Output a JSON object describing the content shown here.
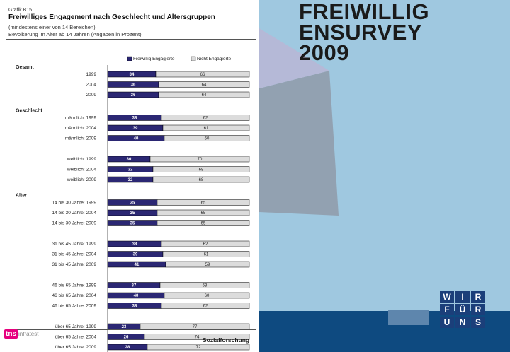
{
  "slide": {
    "title_lines": [
      "FREIWILLIG",
      "ENSURVEY",
      "2009"
    ]
  },
  "figure": {
    "label": "Grafik B15",
    "title": "Freiwilliges Engagement nach Geschlecht und Altersgruppen",
    "subtitle": "(mindestens einer von 14 Bereichen)",
    "base_note": "Bevölkerung im Alter ab 14 Jahren (Angaben in Prozent)",
    "source_logo_text": "tns",
    "source_logo_sub": "infratest",
    "footer": "Sozialforschung"
  },
  "branding": {
    "wfu_letters": [
      [
        "W",
        "I",
        "R"
      ],
      [
        "F",
        "Ü",
        "R"
      ],
      [
        "U",
        "N",
        "S"
      ]
    ]
  },
  "colors": {
    "engaged": "#2b2773",
    "not_engaged": "#dcdcdc",
    "bg_light_blue": "#9fc8e0",
    "bg_dark_blue": "#0e4a80"
  },
  "chart_data": {
    "type": "bar",
    "orientation": "horizontal",
    "stacked": true,
    "legend": [
      "Freiwillig Engagierte",
      "Nicht Engagierte"
    ],
    "legend_position": "top-right",
    "xlim": [
      0,
      100
    ],
    "unit": "Prozent",
    "groups": [
      {
        "name": "Gesamt",
        "rows": [
          {
            "label": "1999",
            "engaged": 34,
            "not_engaged": 66
          },
          {
            "label": "2004",
            "engaged": 36,
            "not_engaged": 64
          },
          {
            "label": "2009",
            "engaged": 36,
            "not_engaged": 64
          }
        ]
      },
      {
        "name": "Geschlecht",
        "rows": [
          {
            "label": "männlich: 1999",
            "engaged": 38,
            "not_engaged": 62
          },
          {
            "label": "männlich: 2004",
            "engaged": 39,
            "not_engaged": 61
          },
          {
            "label": "männlich: 2009",
            "engaged": 40,
            "not_engaged": 60
          }
        ]
      },
      {
        "name": "",
        "rows": [
          {
            "label": "weiblich: 1999",
            "engaged": 30,
            "not_engaged": 70
          },
          {
            "label": "weiblich: 2004",
            "engaged": 32,
            "not_engaged": 68
          },
          {
            "label": "weiblich: 2009",
            "engaged": 32,
            "not_engaged": 68
          }
        ]
      },
      {
        "name": "Alter",
        "rows": [
          {
            "label": "14 bis 30 Jahre: 1999",
            "engaged": 35,
            "not_engaged": 65
          },
          {
            "label": "14 bis 30 Jahre: 2004",
            "engaged": 35,
            "not_engaged": 65
          },
          {
            "label": "14 bis 30 Jahre: 2009",
            "engaged": 35,
            "not_engaged": 65
          }
        ]
      },
      {
        "name": "",
        "rows": [
          {
            "label": "31 bis 45 Jahre: 1999",
            "engaged": 38,
            "not_engaged": 62
          },
          {
            "label": "31 bis 45 Jahre: 2004",
            "engaged": 39,
            "not_engaged": 61
          },
          {
            "label": "31 bis 45 Jahre: 2009",
            "engaged": 41,
            "not_engaged": 59
          }
        ]
      },
      {
        "name": "",
        "rows": [
          {
            "label": "46 bis 65 Jahre: 1999",
            "engaged": 37,
            "not_engaged": 63
          },
          {
            "label": "46 bis 65 Jahre: 2004",
            "engaged": 40,
            "not_engaged": 60
          },
          {
            "label": "46 bis 65 Jahre: 2009",
            "engaged": 38,
            "not_engaged": 62
          }
        ]
      },
      {
        "name": "",
        "rows": [
          {
            "label": "über 65 Jahre: 1999",
            "engaged": 23,
            "not_engaged": 77
          },
          {
            "label": "über 65 Jahre: 2004",
            "engaged": 26,
            "not_engaged": 74
          },
          {
            "label": "über 65 Jahre: 2009",
            "engaged": 28,
            "not_engaged": 72
          }
        ]
      }
    ]
  }
}
